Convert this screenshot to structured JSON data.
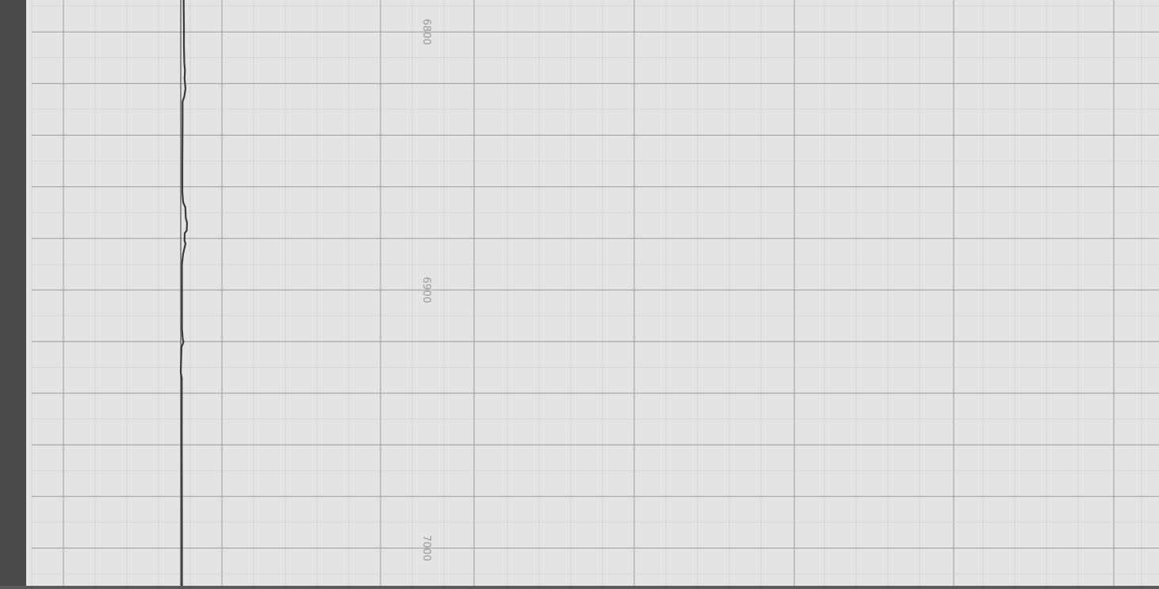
{
  "chart_data": {
    "type": "line",
    "title": "",
    "xlabel": "",
    "ylabel": "",
    "depth_ticks": [
      {
        "value": 6800,
        "label": "6800"
      },
      {
        "value": 6900,
        "label": "6900"
      },
      {
        "value": 7000,
        "label": "7000"
      }
    ],
    "ylim": [
      6760,
      7018
    ],
    "xlim": [
      0,
      10
    ],
    "grid": true,
    "series": [
      {
        "name": "",
        "color": "#3a3a3a",
        "points": [
          [
            0.55,
            6760
          ],
          [
            0.55,
            6777
          ],
          [
            0.7,
            6782
          ],
          [
            0.75,
            6792
          ],
          [
            0.8,
            6798
          ],
          [
            0.8,
            6805
          ],
          [
            0.9,
            6812
          ],
          [
            1.05,
            6815
          ],
          [
            0.95,
            6818
          ],
          [
            1.2,
            6822
          ],
          [
            0.9,
            6825
          ],
          [
            0.45,
            6827
          ],
          [
            0.45,
            6835
          ],
          [
            0.4,
            6850
          ],
          [
            0.4,
            6862
          ],
          [
            0.6,
            6866
          ],
          [
            1.15,
            6868
          ],
          [
            1.25,
            6872
          ],
          [
            1.6,
            6874
          ],
          [
            1.5,
            6877
          ],
          [
            1.0,
            6878
          ],
          [
            0.95,
            6881
          ],
          [
            1.2,
            6882
          ],
          [
            0.6,
            6886
          ],
          [
            0.3,
            6890
          ],
          [
            0.3,
            6900
          ],
          [
            0.3,
            6915
          ],
          [
            0.5,
            6919
          ],
          [
            0.7,
            6920
          ],
          [
            0.5,
            6921
          ],
          [
            0.2,
            6922
          ],
          [
            0.1,
            6927
          ],
          [
            0.0,
            6932
          ],
          [
            0.25,
            6934
          ],
          [
            0.25,
            6960
          ],
          [
            0.3,
            6990
          ],
          [
            0.3,
            7018
          ]
        ]
      }
    ]
  },
  "colors": {
    "paper": "#e4e4e4",
    "grid_minor": "#c8c8c8",
    "grid_major": "#9b9b9b",
    "trace": "#3a3a3a",
    "left_strip": "#4a4a4a"
  }
}
